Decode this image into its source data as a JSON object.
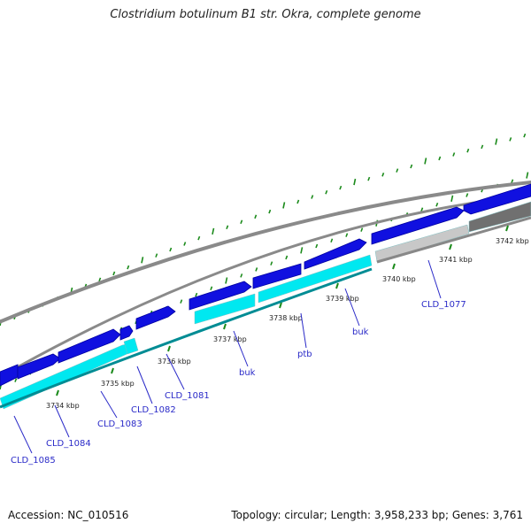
{
  "title": "Clostridium botulinum B1 str. Okra, complete genome",
  "footer": {
    "accession": "Accession: NC_010516",
    "stats": "Topology: circular; Length: 3,958,233 bp; Genes: 3,761"
  },
  "colors": {
    "backbone": "#8a8a8a",
    "cds_forward": "#1010e0",
    "cds_dark": "#0000a0",
    "cds_reverse_band": "#00e8f0",
    "cds_reverse_band_dark": "#008c94",
    "gray_band": "#c8c8c8",
    "dark_gray_band": "#707070",
    "tick": "#1a8a1a",
    "gene_label": "#2a2ac8"
  },
  "kbp_ticks": [
    "3734 kbp",
    "3735 kbp",
    "3736 kbp",
    "3737 kbp",
    "3738 kbp",
    "3739 kbp",
    "3740 kbp",
    "3741 kbp",
    "3742 kbp"
  ],
  "genes": [
    "CLD_1085",
    "CLD_1084",
    "CLD_1083",
    "CLD_1082",
    "CLD_1081",
    "buk",
    "ptb",
    "buk",
    "CLD_1077"
  ]
}
